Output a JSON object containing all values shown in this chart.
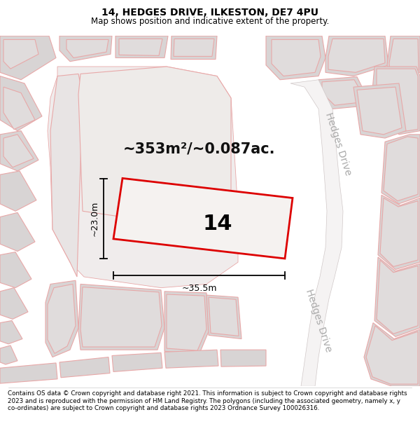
{
  "title": "14, HEDGES DRIVE, ILKESTON, DE7 4PU",
  "subtitle": "Map shows position and indicative extent of the property.",
  "area_text": "~353m²/~0.087ac.",
  "plot_number": "14",
  "dim_width": "~35.5m",
  "dim_height": "~23.0m",
  "footer": "Contains OS data © Crown copyright and database right 2021. This information is subject to Crown copyright and database rights 2023 and is reproduced with the permission of HM Land Registry. The polygons (including the associated geometry, namely x, y co-ordinates) are subject to Crown copyright and database rights 2023 Ordnance Survey 100026316.",
  "bg_color": "#f5f3f3",
  "plot_fill": "#f0eeee",
  "plot_edge": "#dd0000",
  "building_fill": "#e0dcdc",
  "building_edge": "#e8a0a0",
  "road_label_1": "Hedges Drive",
  "road_label_2": "Hedges Drive",
  "title_fontsize": 10,
  "subtitle_fontsize": 8.5,
  "area_fontsize": 15,
  "plot_num_fontsize": 22,
  "dim_fontsize": 9,
  "road_fontsize": 10
}
